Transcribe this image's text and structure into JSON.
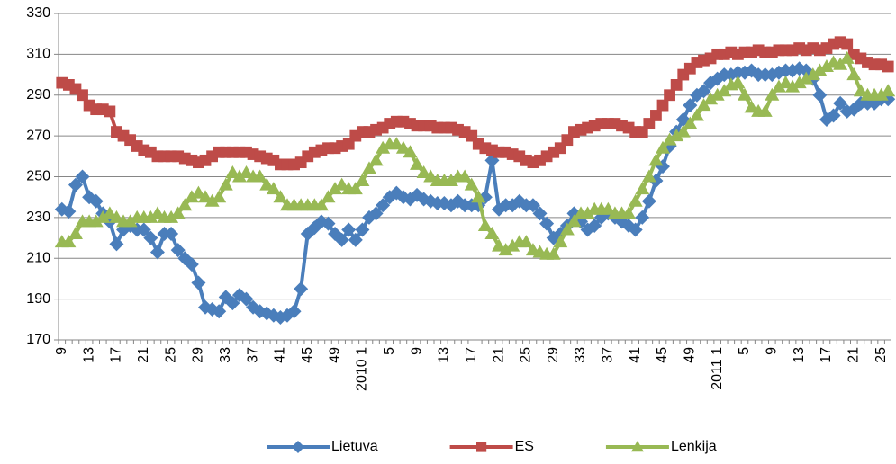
{
  "chart_data": {
    "type": "line",
    "categories": [
      "9",
      null,
      null,
      null,
      "13",
      null,
      null,
      null,
      "17",
      null,
      null,
      null,
      "21",
      null,
      null,
      null,
      "25",
      null,
      null,
      null,
      "29",
      null,
      null,
      null,
      "33",
      null,
      null,
      null,
      "37",
      null,
      null,
      null,
      "41",
      null,
      null,
      null,
      "45",
      null,
      null,
      null,
      "49",
      null,
      null,
      null,
      "2010 1",
      null,
      null,
      null,
      "5",
      null,
      null,
      null,
      "9",
      null,
      null,
      null,
      "13",
      null,
      null,
      null,
      "17",
      null,
      null,
      null,
      "21",
      null,
      null,
      null,
      "25",
      null,
      null,
      null,
      "29",
      null,
      null,
      null,
      "33",
      null,
      null,
      null,
      "37",
      null,
      null,
      null,
      "41",
      null,
      null,
      null,
      "45",
      null,
      null,
      null,
      "49",
      null,
      null,
      null,
      "2011 1",
      null,
      null,
      null,
      "5",
      null,
      null,
      null,
      "9",
      null,
      null,
      null,
      "13",
      null,
      null,
      null,
      "17",
      null,
      null,
      null,
      "21",
      null,
      null,
      null,
      "25",
      null
    ],
    "series": [
      {
        "name": "Lietuva",
        "color": "#4a7ebb",
        "marker": "diamond",
        "values": [
          234,
          233,
          246,
          250,
          240,
          238,
          232,
          228,
          217,
          224,
          226,
          224,
          224,
          220,
          213,
          222,
          222,
          214,
          210,
          207,
          198,
          186,
          185,
          184,
          191,
          188,
          192,
          190,
          186,
          184,
          183,
          182,
          181,
          182,
          184,
          195,
          222,
          225,
          228,
          227,
          222,
          219,
          224,
          219,
          224,
          230,
          232,
          236,
          240,
          242,
          240,
          239,
          241,
          239,
          238,
          237,
          237,
          236,
          238,
          236,
          236,
          236,
          240,
          258,
          234,
          236,
          236,
          238,
          236,
          236,
          232,
          227,
          220,
          222,
          226,
          232,
          228,
          224,
          226,
          230,
          232,
          230,
          228,
          226,
          224,
          230,
          238,
          248,
          255,
          265,
          272,
          278,
          285,
          290,
          292,
          296,
          298,
          300,
          300,
          301,
          301,
          302,
          300,
          300,
          300,
          301,
          302,
          302,
          303,
          302,
          298,
          290,
          278,
          280,
          286,
          282,
          283,
          286,
          286,
          286,
          288,
          288
        ]
      },
      {
        "name": "ES",
        "color": "#be4b48",
        "marker": "square",
        "values": [
          296,
          295,
          293,
          290,
          285,
          283,
          283,
          282,
          272,
          270,
          268,
          265,
          263,
          262,
          260,
          260,
          260,
          260,
          259,
          258,
          257,
          258,
          260,
          262,
          262,
          262,
          262,
          262,
          261,
          260,
          259,
          258,
          256,
          256,
          256,
          257,
          260,
          262,
          263,
          264,
          264,
          265,
          266,
          270,
          272,
          272,
          273,
          274,
          276,
          277,
          277,
          276,
          275,
          275,
          275,
          274,
          274,
          274,
          273,
          272,
          270,
          266,
          264,
          263,
          262,
          262,
          261,
          260,
          258,
          257,
          258,
          260,
          262,
          264,
          268,
          272,
          273,
          274,
          275,
          276,
          276,
          276,
          275,
          274,
          272,
          272,
          276,
          280,
          285,
          290,
          295,
          300,
          303,
          306,
          307,
          308,
          310,
          310,
          311,
          310,
          311,
          311,
          312,
          311,
          311,
          312,
          312,
          312,
          313,
          312,
          313,
          312,
          313,
          315,
          316,
          315,
          310,
          308,
          306,
          305,
          305,
          304
        ]
      },
      {
        "name": "Lenkija",
        "color": "#98b954",
        "marker": "triangle",
        "values": [
          218,
          218,
          222,
          228,
          228,
          228,
          230,
          232,
          230,
          228,
          228,
          230,
          230,
          230,
          232,
          230,
          230,
          232,
          236,
          240,
          242,
          240,
          238,
          240,
          246,
          252,
          250,
          252,
          250,
          250,
          246,
          244,
          240,
          236,
          236,
          236,
          236,
          236,
          236,
          240,
          244,
          246,
          244,
          244,
          248,
          254,
          258,
          264,
          266,
          266,
          264,
          262,
          256,
          252,
          250,
          248,
          248,
          248,
          250,
          250,
          246,
          240,
          226,
          222,
          216,
          214,
          216,
          218,
          218,
          214,
          213,
          212,
          212,
          218,
          224,
          228,
          232,
          232,
          234,
          234,
          234,
          232,
          232,
          232,
          238,
          244,
          250,
          258,
          264,
          268,
          270,
          272,
          276,
          280,
          285,
          288,
          290,
          292,
          295,
          296,
          290,
          284,
          282,
          282,
          290,
          294,
          296,
          294,
          296,
          298,
          300,
          302,
          304,
          306,
          305,
          308,
          300,
          292,
          290,
          290,
          290,
          292
        ]
      }
    ],
    "ylim": [
      170,
      330
    ],
    "yticks": [
      170,
      190,
      210,
      230,
      250,
      270,
      290,
      310,
      330
    ],
    "grid": true,
    "legend": "bottom"
  }
}
